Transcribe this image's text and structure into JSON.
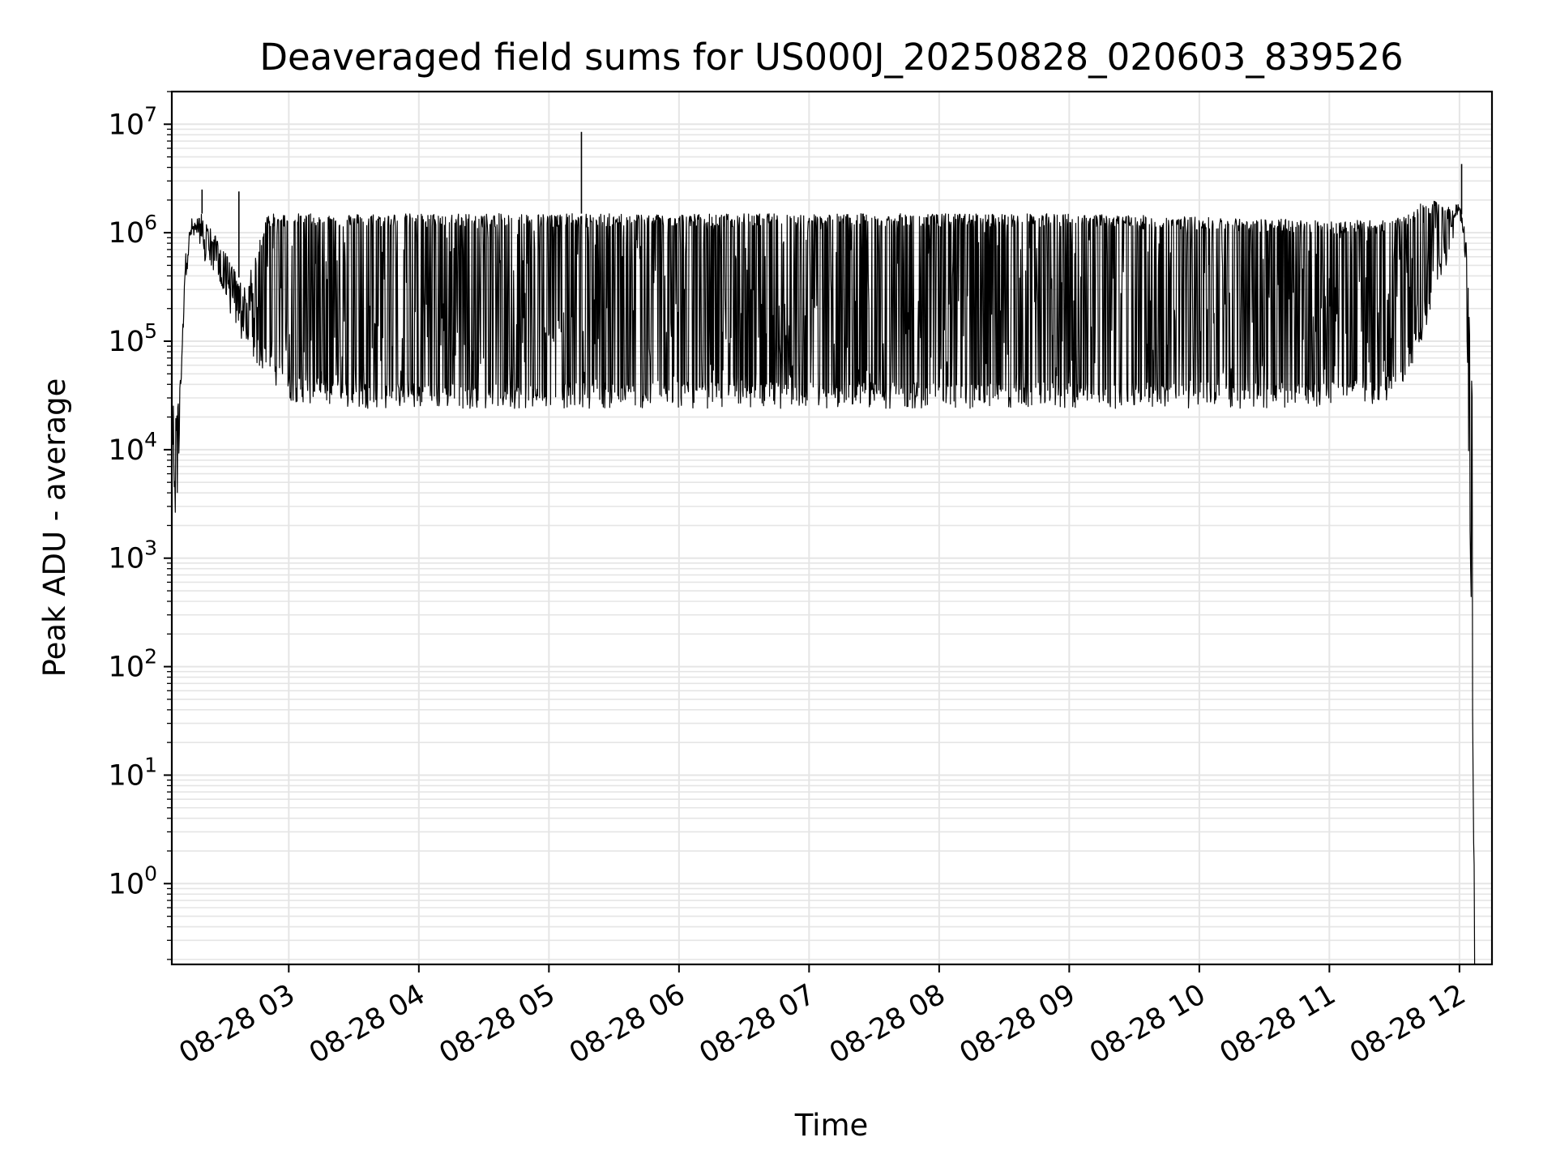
{
  "chart_data": {
    "type": "line",
    "title": "Deaveraged field sums for US000J_20250828_020603_839526",
    "xlabel": "Time",
    "ylabel": "Peak ADU - average",
    "yscale": "log",
    "ylim": [
      0.18,
      20000000
    ],
    "xlim": [
      "2025-08-28T02:06:03",
      "2025-08-28T12:15:00"
    ],
    "grid": true,
    "legend": "none",
    "line_color": "#000000",
    "grid_color": "#e5e5e5",
    "x_tick_labels": [
      "08-28 03",
      "08-28 04",
      "08-28 05",
      "08-28 06",
      "08-28 07",
      "08-28 08",
      "08-28 09",
      "08-28 10",
      "08-28 11",
      "08-28 12"
    ],
    "x_tick_times": [
      "2025-08-28T03:00:00",
      "2025-08-28T04:00:00",
      "2025-08-28T05:00:00",
      "2025-08-28T06:00:00",
      "2025-08-28T07:00:00",
      "2025-08-28T08:00:00",
      "2025-08-28T09:00:00",
      "2025-08-28T10:00:00",
      "2025-08-28T11:00:00",
      "2025-08-28T12:00:00"
    ],
    "y_tick_labels": [
      {
        "base": "10",
        "exp": "0",
        "value": 1
      },
      {
        "base": "10",
        "exp": "1",
        "value": 10
      },
      {
        "base": "10",
        "exp": "2",
        "value": 100
      },
      {
        "base": "10",
        "exp": "3",
        "value": 1000
      },
      {
        "base": "10",
        "exp": "4",
        "value": 10000
      },
      {
        "base": "10",
        "exp": "5",
        "value": 100000
      },
      {
        "base": "10",
        "exp": "6",
        "value": 1000000
      },
      {
        "base": "10",
        "exp": "7",
        "value": 10000000
      }
    ],
    "envelope": {
      "description_of_series": "dense oscillating series; values below are the upper and lower envelope read from the plot",
      "time": [
        "2025-08-28T02:06:03",
        "2025-08-28T02:08:00",
        "2025-08-28T02:10:00",
        "2025-08-28T02:12:00",
        "2025-08-28T02:15:00",
        "2025-08-28T02:20:00",
        "2025-08-28T02:30:00",
        "2025-08-28T02:40:00",
        "2025-08-28T02:50:00",
        "2025-08-28T03:00:00",
        "2025-08-28T03:30:00",
        "2025-08-28T04:00:00",
        "2025-08-28T05:00:00",
        "2025-08-28T06:00:00",
        "2025-08-28T07:00:00",
        "2025-08-28T08:00:00",
        "2025-08-28T09:00:00",
        "2025-08-28T10:00:00",
        "2025-08-28T11:00:00",
        "2025-08-28T11:30:00",
        "2025-08-28T11:45:00",
        "2025-08-28T12:00:00",
        "2025-08-28T12:03:00",
        "2025-08-28T12:06:00",
        "2025-08-28T12:07:00"
      ],
      "upper": [
        30000,
        20000,
        50000,
        500000,
        1200000,
        1500000,
        700000,
        300000,
        1500000,
        1500000,
        1500000,
        1500000,
        1500000,
        1500000,
        1500000,
        1500000,
        1500000,
        1400000,
        1300000,
        1300000,
        2000000,
        1800000,
        1000000,
        30000,
        0.1
      ],
      "lower": [
        15000,
        2000,
        20000,
        400000,
        1000000,
        700000,
        300000,
        100000,
        60000,
        35000,
        30000,
        30000,
        30000,
        30000,
        30000,
        30000,
        30000,
        30000,
        30000,
        35000,
        150000,
        1600000,
        500000,
        50,
        0.1
      ]
    },
    "spikes": [
      {
        "time": "2025-08-28T02:20:00",
        "value": 2500000
      },
      {
        "time": "2025-08-28T02:37:00",
        "value": 2400000
      },
      {
        "time": "2025-08-28T05:15:00",
        "value": 8500000
      },
      {
        "time": "2025-08-28T12:01:00",
        "value": 4300000
      }
    ]
  }
}
